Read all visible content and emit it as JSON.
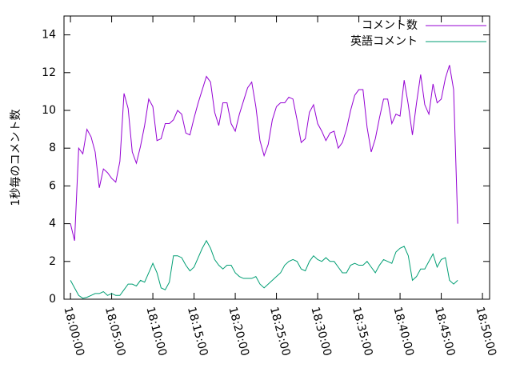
{
  "chart_data": {
    "type": "line",
    "y_label": "1秒毎のコメント数",
    "x": [
      "18:00:00",
      "18:00:30",
      "18:01:00",
      "18:01:30",
      "18:02:00",
      "18:02:30",
      "18:03:00",
      "18:03:30",
      "18:04:00",
      "18:04:30",
      "18:05:00",
      "18:05:30",
      "18:06:00",
      "18:06:30",
      "18:07:00",
      "18:07:30",
      "18:08:00",
      "18:08:30",
      "18:09:00",
      "18:09:30",
      "18:10:00",
      "18:10:30",
      "18:11:00",
      "18:11:30",
      "18:12:00",
      "18:12:30",
      "18:13:00",
      "18:13:30",
      "18:14:00",
      "18:14:30",
      "18:15:00",
      "18:15:30",
      "18:16:00",
      "18:16:30",
      "18:17:00",
      "18:17:30",
      "18:18:00",
      "18:18:30",
      "18:19:00",
      "18:19:30",
      "18:20:00",
      "18:20:30",
      "18:21:00",
      "18:21:30",
      "18:22:00",
      "18:22:30",
      "18:23:00",
      "18:23:30",
      "18:24:00",
      "18:24:30",
      "18:25:00",
      "18:25:30",
      "18:26:00",
      "18:26:30",
      "18:27:00",
      "18:27:30",
      "18:28:00",
      "18:28:30",
      "18:29:00",
      "18:29:30",
      "18:30:00",
      "18:30:30",
      "18:31:00",
      "18:31:30",
      "18:32:00",
      "18:32:30",
      "18:33:00",
      "18:33:30",
      "18:34:00",
      "18:34:30",
      "18:35:00",
      "18:35:30",
      "18:36:00",
      "18:36:30",
      "18:37:00",
      "18:37:30",
      "18:38:00",
      "18:38:30",
      "18:39:00",
      "18:39:30",
      "18:40:00",
      "18:40:30",
      "18:41:00",
      "18:41:30",
      "18:42:00",
      "18:42:30",
      "18:43:00",
      "18:43:30",
      "18:44:00",
      "18:44:30",
      "18:45:00",
      "18:45:30",
      "18:46:00",
      "18:46:30",
      "18:47:00"
    ],
    "series": [
      {
        "name": "コメント数",
        "color": "#9400d3",
        "values": [
          4.0,
          3.1,
          8.0,
          7.7,
          9.0,
          8.6,
          7.8,
          5.9,
          6.9,
          6.7,
          6.4,
          6.2,
          7.3,
          10.9,
          10.1,
          7.8,
          7.2,
          8.1,
          9.2,
          10.6,
          10.2,
          8.4,
          8.5,
          9.3,
          9.3,
          9.5,
          10.0,
          9.8,
          8.8,
          8.7,
          9.6,
          10.4,
          11.1,
          11.8,
          11.5,
          9.9,
          9.2,
          10.4,
          10.4,
          9.3,
          8.9,
          9.8,
          10.5,
          11.2,
          11.5,
          10.2,
          8.4,
          7.6,
          8.2,
          9.5,
          10.2,
          10.4,
          10.4,
          10.7,
          10.6,
          9.5,
          8.3,
          8.5,
          9.9,
          10.3,
          9.3,
          8.9,
          8.4,
          8.8,
          8.9,
          8.0,
          8.3,
          9.0,
          10.0,
          10.8,
          11.1,
          11.1,
          9.1,
          7.8,
          8.5,
          9.6,
          10.6,
          10.6,
          9.3,
          9.8,
          9.7,
          11.6,
          10.3,
          8.7,
          10.4,
          11.9,
          10.3,
          9.8,
          11.4,
          10.4,
          10.6,
          11.7,
          12.4,
          11.1,
          4.0
        ]
      },
      {
        "name": "英語コメント",
        "color": "#009e73",
        "values": [
          1.0,
          0.6,
          0.2,
          0.05,
          0.1,
          0.2,
          0.3,
          0.3,
          0.4,
          0.2,
          0.3,
          0.2,
          0.2,
          0.5,
          0.8,
          0.8,
          0.7,
          1.0,
          0.9,
          1.4,
          1.9,
          1.4,
          0.6,
          0.5,
          0.9,
          2.3,
          2.3,
          2.2,
          1.8,
          1.5,
          1.7,
          2.2,
          2.7,
          3.1,
          2.7,
          2.1,
          1.8,
          1.6,
          1.8,
          1.8,
          1.4,
          1.2,
          1.1,
          1.1,
          1.1,
          1.2,
          0.8,
          0.6,
          0.8,
          1.0,
          1.2,
          1.4,
          1.8,
          2.0,
          2.1,
          2.0,
          1.6,
          1.5,
          2.0,
          2.3,
          2.1,
          2.0,
          2.2,
          2.0,
          2.0,
          1.7,
          1.4,
          1.4,
          1.8,
          1.9,
          1.8,
          1.8,
          2.0,
          1.7,
          1.4,
          1.8,
          2.1,
          2.0,
          1.9,
          2.5,
          2.7,
          2.8,
          2.3,
          1.0,
          1.2,
          1.6,
          1.6,
          2.0,
          2.4,
          1.7,
          2.1,
          2.2,
          1.0,
          0.8,
          1.0
        ]
      }
    ],
    "xlim": [
      "17:59:13",
      "18:50:52"
    ],
    "xticks": [
      "18:00:00",
      "18:05:00",
      "18:10:00",
      "18:15:00",
      "18:20:00",
      "18:25:00",
      "18:30:00",
      "18:35:00",
      "18:40:00",
      "18:45:00",
      "18:50:00"
    ],
    "ylim": [
      0,
      15
    ],
    "yticks": [
      0,
      2,
      4,
      6,
      8,
      10,
      12,
      14
    ],
    "grid": false,
    "legend": "top-right"
  }
}
